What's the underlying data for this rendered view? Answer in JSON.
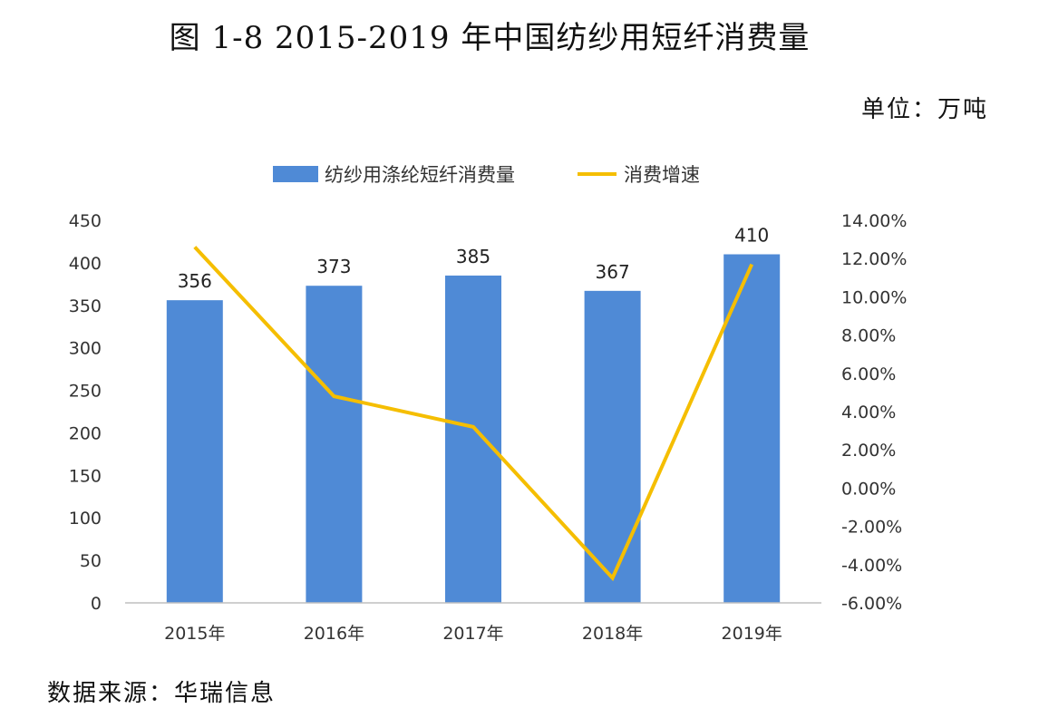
{
  "chart_data": {
    "type": "bar+line",
    "title": "图 1-8 2015-2019 年中国纺纱用短纤消费量",
    "unit_label": "单位：万吨",
    "source": "数据来源：华瑞信息",
    "categories": [
      "2015年",
      "2016年",
      "2017年",
      "2018年",
      "2019年"
    ],
    "series": [
      {
        "name": "纺纱用涤纶短纤消费量",
        "type": "bar",
        "axis": "left",
        "values": [
          356,
          373,
          385,
          367,
          410
        ],
        "color": "#4F8AD6",
        "data_labels": true
      },
      {
        "name": "消费增速",
        "type": "line",
        "axis": "right",
        "values": [
          12.6,
          4.8,
          3.2,
          -4.7,
          11.7
        ],
        "color": "#F5BE00"
      }
    ],
    "left_axis": {
      "range": [
        0,
        450
      ],
      "ticks": [
        "0",
        "50",
        "100",
        "150",
        "200",
        "250",
        "300",
        "350",
        "400",
        "450"
      ]
    },
    "right_axis": {
      "range": [
        -6,
        14
      ],
      "ticks": [
        "-6.00%",
        "-4.00%",
        "-2.00%",
        "0.00%",
        "2.00%",
        "4.00%",
        "6.00%",
        "8.00%",
        "10.00%",
        "12.00%",
        "14.00%"
      ]
    },
    "grid": false,
    "legend": "top"
  }
}
